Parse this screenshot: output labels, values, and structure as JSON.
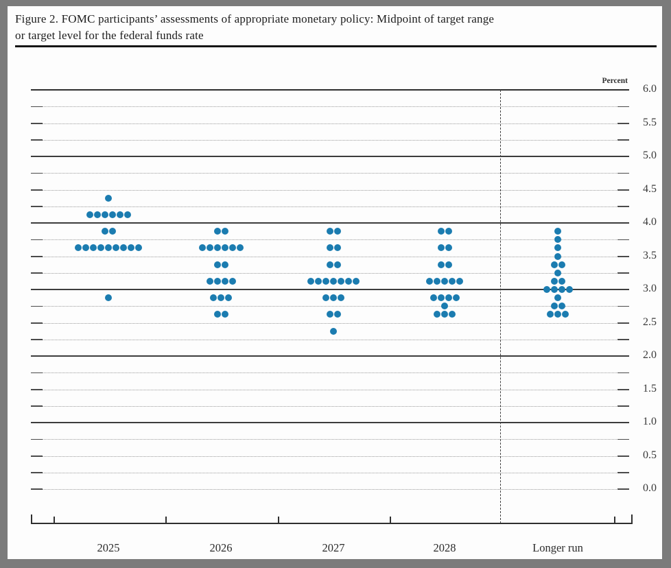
{
  "page": {
    "title_line1": "Figure 2. FOMC participants’ assessments of appropriate monetary policy: Midpoint of target range",
    "title_line2": "or target level for the federal funds rate"
  },
  "chart_data": {
    "type": "scatter",
    "subtype": "fomc-dot-plot",
    "title": "Figure 2. FOMC participants’ assessments of appropriate monetary policy: Midpoint of target range or target level for the federal funds rate",
    "ylabel": "Percent",
    "ylim": [
      0.0,
      6.0
    ],
    "grid": {
      "solid_lines_at": [
        6.0,
        5.0,
        4.0,
        3.0,
        2.0,
        1.0
      ],
      "dashed_line_step": 0.25,
      "dashed_includes_zero": true
    },
    "y_tick_labels": [
      "6.0",
      "5.5",
      "5.0",
      "4.5",
      "4.0",
      "3.5",
      "3.0",
      "2.5",
      "2.0",
      "1.5",
      "1.0",
      "0.5",
      "0.0"
    ],
    "categories": [
      "2025",
      "2026",
      "2027",
      "2028",
      "Longer run"
    ],
    "dot_color": "#1b7cb0",
    "separator": {
      "type": "vertical-dashed-line",
      "between": [
        "2028",
        "Longer run"
      ]
    },
    "series": [
      {
        "category": "2025",
        "dots": [
          {
            "rate": 4.375,
            "count": 1
          },
          {
            "rate": 4.125,
            "count": 6
          },
          {
            "rate": 3.875,
            "count": 2
          },
          {
            "rate": 3.625,
            "count": 9
          },
          {
            "rate": 2.875,
            "count": 1
          }
        ]
      },
      {
        "category": "2026",
        "dots": [
          {
            "rate": 3.875,
            "count": 2
          },
          {
            "rate": 3.625,
            "count": 6
          },
          {
            "rate": 3.375,
            "count": 2
          },
          {
            "rate": 3.125,
            "count": 4
          },
          {
            "rate": 2.875,
            "count": 3
          },
          {
            "rate": 2.625,
            "count": 2
          }
        ]
      },
      {
        "category": "2027",
        "dots": [
          {
            "rate": 3.875,
            "count": 2
          },
          {
            "rate": 3.625,
            "count": 2
          },
          {
            "rate": 3.375,
            "count": 2
          },
          {
            "rate": 3.125,
            "count": 7
          },
          {
            "rate": 2.875,
            "count": 3
          },
          {
            "rate": 2.625,
            "count": 2
          },
          {
            "rate": 2.375,
            "count": 1
          }
        ]
      },
      {
        "category": "2028",
        "dots": [
          {
            "rate": 3.875,
            "count": 2
          },
          {
            "rate": 3.625,
            "count": 2
          },
          {
            "rate": 3.375,
            "count": 2
          },
          {
            "rate": 3.125,
            "count": 5
          },
          {
            "rate": 2.875,
            "count": 4
          },
          {
            "rate": 2.75,
            "count": 1
          },
          {
            "rate": 2.625,
            "count": 3
          }
        ]
      },
      {
        "category": "Longer run",
        "dots": [
          {
            "rate": 3.875,
            "count": 1
          },
          {
            "rate": 3.75,
            "count": 1
          },
          {
            "rate": 3.625,
            "count": 1
          },
          {
            "rate": 3.5,
            "count": 1
          },
          {
            "rate": 3.375,
            "count": 2
          },
          {
            "rate": 3.25,
            "count": 1
          },
          {
            "rate": 3.125,
            "count": 2
          },
          {
            "rate": 3.0,
            "count": 4
          },
          {
            "rate": 2.875,
            "count": 1
          },
          {
            "rate": 2.75,
            "count": 2
          },
          {
            "rate": 2.625,
            "count": 3
          }
        ]
      }
    ]
  }
}
